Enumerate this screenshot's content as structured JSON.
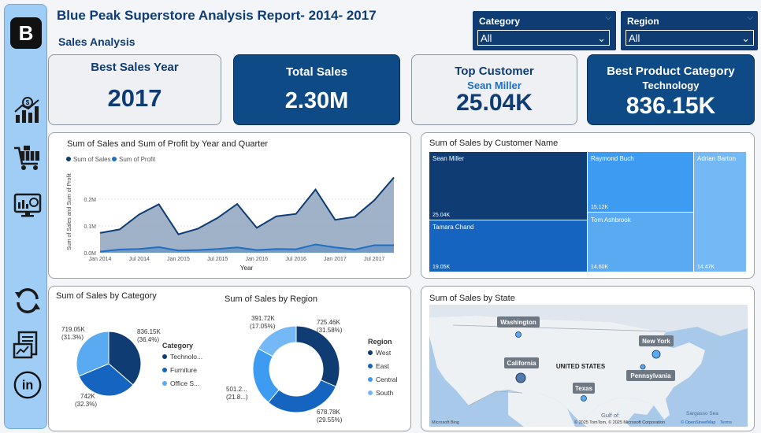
{
  "header": {
    "title": "Blue Peak Superstore Analysis Report- 2014- 2017",
    "subtitle": "Sales  Analysis"
  },
  "slicers": {
    "category": {
      "label": "Category",
      "value": "All"
    },
    "region": {
      "label": "Region",
      "value": "All"
    }
  },
  "kpis": {
    "best_year": {
      "title": "Best Sales Year",
      "value": "2017"
    },
    "total_sales": {
      "title": "Total Sales",
      "value": "2.30M"
    },
    "top_customer": {
      "title": "Top Customer",
      "name": "Sean Miller",
      "value": "25.04K"
    },
    "best_category": {
      "title": "Best Product Category",
      "name": "Technology",
      "value": "836.15K"
    }
  },
  "sidebar": {
    "logo": "B",
    "icons": [
      "sales-growth-icon",
      "cart-icon",
      "dashboard-monitor-icon",
      "refresh-icon",
      "report-icon",
      "linkedin-icon"
    ]
  },
  "colors": {
    "navy": "#0e3c73",
    "dark_blue": "#0e4a86",
    "mid_blue": "#1f6fc6",
    "light_blue": "#5aa9f0",
    "sidebar": "#9fcdf6"
  },
  "chart_data": [
    {
      "type": "area",
      "title": "Sum of Sales and Sum of Profit by Year and Quarter",
      "xlabel": "Year",
      "ylabel": "Sum of Sales and Sum of Profit",
      "x_ticks": [
        "Jan 2014",
        "Jul 2014",
        "Jan 2015",
        "Jul 2015",
        "Jan 2016",
        "Jul 2016",
        "Jan 2017",
        "Jul 2017"
      ],
      "y_ticks": [
        "0.0M",
        "0.1M",
        "0.2M"
      ],
      "ylim": [
        0,
        0.3
      ],
      "legend": [
        "Sum of Sales",
        "Sum of Profit"
      ],
      "legend_position": "top-left",
      "categories": [
        "2014 Q1",
        "2014 Q2",
        "2014 Q3",
        "2014 Q4",
        "2015 Q1",
        "2015 Q2",
        "2015 Q3",
        "2015 Q4",
        "2016 Q1",
        "2016 Q2",
        "2016 Q3",
        "2016 Q4",
        "2017 Q1",
        "2017 Q2",
        "2017 Q3",
        "2017 Q4"
      ],
      "series": [
        {
          "name": "Sum of Sales",
          "values": [
            0.074,
            0.087,
            0.143,
            0.181,
            0.069,
            0.09,
            0.13,
            0.182,
            0.093,
            0.136,
            0.145,
            0.236,
            0.123,
            0.134,
            0.196,
            0.281
          ]
        },
        {
          "name": "Sum of Profit",
          "values": [
            0.004,
            0.012,
            0.014,
            0.021,
            0.008,
            0.01,
            0.014,
            0.02,
            0.01,
            0.014,
            0.013,
            0.031,
            0.02,
            0.012,
            0.028,
            0.028
          ]
        }
      ]
    },
    {
      "type": "treemap",
      "title": "Sum of Sales by Customer Name",
      "items": [
        {
          "name": "Sean Miller",
          "label": "25.04K",
          "value": 25.04
        },
        {
          "name": "Tamara Chand",
          "label": "19.05K",
          "value": 19.05
        },
        {
          "name": "Raymond Buch",
          "label": "15.12K",
          "value": 15.12
        },
        {
          "name": "Tom Ashbrook",
          "label": "14.60K",
          "value": 14.6
        },
        {
          "name": "Adrian Barton",
          "label": "14.47K",
          "value": 14.47
        }
      ]
    },
    {
      "type": "pie",
      "title": "Sum of Sales by Category",
      "legend_title": "Category",
      "slices": [
        {
          "name": "Technolo...",
          "value": 836.15,
          "label": "836.15K",
          "pct": "(36.4%)"
        },
        {
          "name": "Furniture",
          "value": 742,
          "label": "742K",
          "pct": "(32.3%)"
        },
        {
          "name": "Office S...",
          "value": 719.05,
          "label": "719.05K",
          "pct": "(31.3%)"
        }
      ]
    },
    {
      "type": "pie",
      "subtype": "donut",
      "title": "Sum of Sales by Region",
      "legend_title": "Region",
      "slices": [
        {
          "name": "West",
          "value": 725.46,
          "label": "725.46K",
          "pct": "(31.58%)"
        },
        {
          "name": "East",
          "value": 678.78,
          "label": "678.78K",
          "pct": "(29.55%)"
        },
        {
          "name": "Central",
          "value": 501.2,
          "label": "501.2...",
          "pct": "(21.8...)"
        },
        {
          "name": "South",
          "value": 391.72,
          "label": "391.72K",
          "pct": "(17.05%)"
        }
      ]
    }
  ],
  "map": {
    "title": "Sum of Sales by State",
    "labels": [
      "Washington",
      "New York",
      "California",
      "UNITED STATES",
      "Pennsylvania",
      "Texas",
      "Gulf of",
      "Sargasso Sea"
    ],
    "footer_left": "Microsoft Bing",
    "footer_right": "© 2025 TomTom, © 2025 Microsoft Corporation",
    "footer_osm": "© OpenStreetMap",
    "footer_terms": "Terms"
  }
}
